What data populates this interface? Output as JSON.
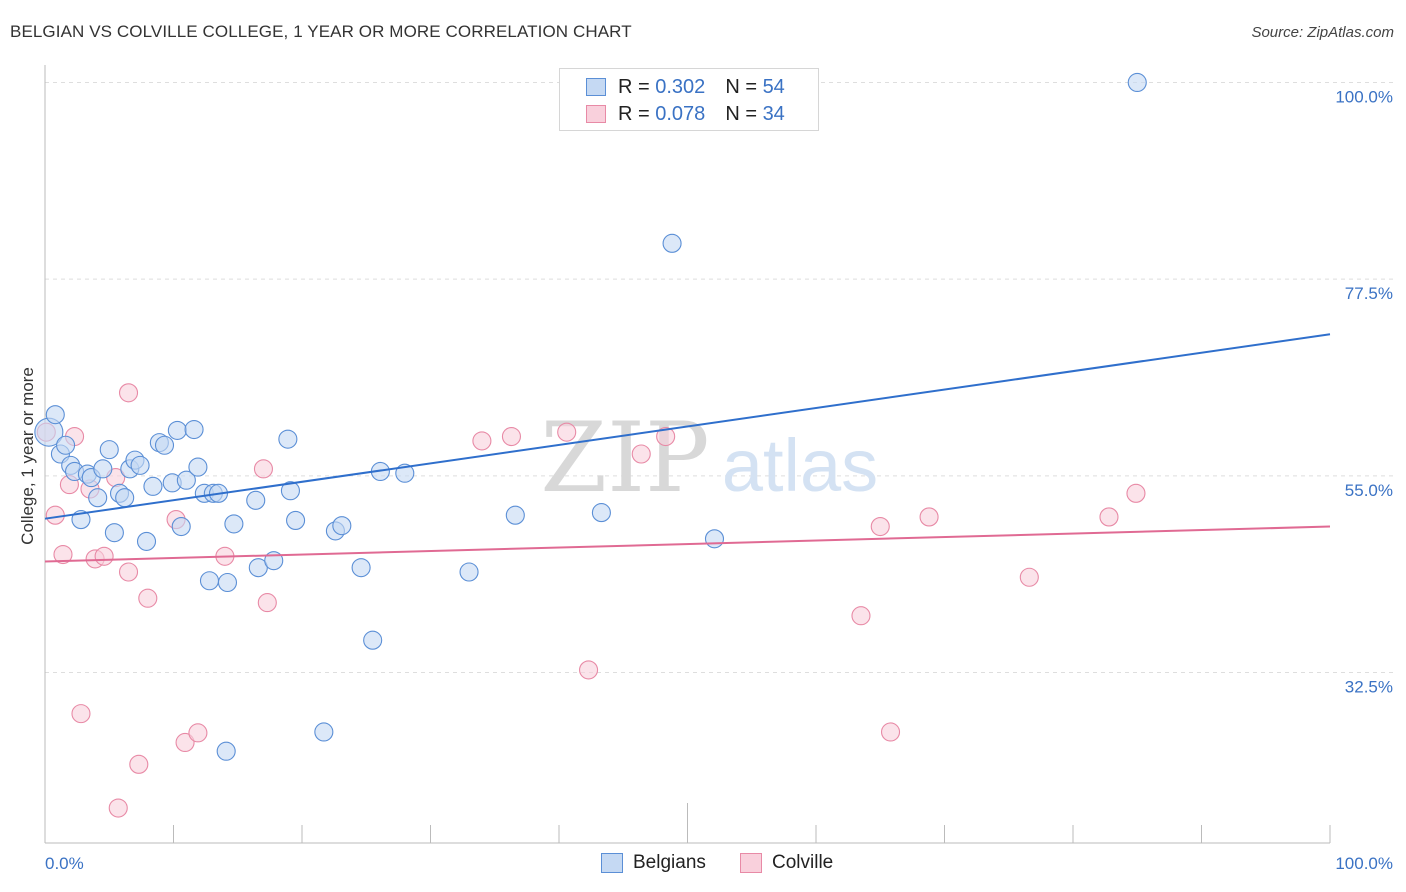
{
  "header": {
    "title": "BELGIAN VS COLVILLE COLLEGE, 1 YEAR OR MORE CORRELATION CHART",
    "source": "Source: ZipAtlas.com"
  },
  "legend": {
    "belgians": {
      "r_label": "R = ",
      "r_value": "0.302",
      "n_label": "N = ",
      "n_value": "54"
    },
    "colville": {
      "r_label": "R = ",
      "r_value": "0.078",
      "n_label": "N = ",
      "n_value": "34"
    }
  },
  "watermark": {
    "zip": "ZIP",
    "atlas": "atlas"
  },
  "chart_data": {
    "type": "scatter",
    "title": "BELGIAN VS COLVILLE COLLEGE, 1 YEAR OR MORE CORRELATION CHART",
    "xlabel": "",
    "ylabel": "College, 1 year or more",
    "xlim": [
      0,
      100
    ],
    "ylim": [
      13,
      102
    ],
    "x_tick_labels": [
      "0.0%",
      "100.0%"
    ],
    "y_ticks": [
      {
        "value": 32.5,
        "label": "32.5%"
      },
      {
        "value": 55.0,
        "label": "55.0%"
      },
      {
        "value": 77.5,
        "label": "77.5%"
      },
      {
        "value": 100.0,
        "label": "100.0%"
      }
    ],
    "colors": {
      "belgians": "#5b8fd6",
      "belgians_fill": "#c5d9f3",
      "belgians_line": "#2f6fcc",
      "colville": "#e88aa6",
      "colville_fill": "#f9d0dc",
      "colville_line": "#e06a93"
    },
    "series": [
      {
        "name": "Belgians",
        "trend": {
          "x": [
            0,
            100
          ],
          "y": [
            50.1,
            71.2
          ]
        },
        "points": [
          [
            0.3,
            60.0
          ],
          [
            0.8,
            62.0
          ],
          [
            1.2,
            57.5
          ],
          [
            1.6,
            58.5
          ],
          [
            2.0,
            56.2
          ],
          [
            2.3,
            55.5
          ],
          [
            2.8,
            50.0
          ],
          [
            3.3,
            55.2
          ],
          [
            3.6,
            54.8
          ],
          [
            4.1,
            52.5
          ],
          [
            4.5,
            55.8
          ],
          [
            5.0,
            58.0
          ],
          [
            5.4,
            48.5
          ],
          [
            5.8,
            53.0
          ],
          [
            6.2,
            52.5
          ],
          [
            6.6,
            55.8
          ],
          [
            7.0,
            56.8
          ],
          [
            7.4,
            56.2
          ],
          [
            7.9,
            47.5
          ],
          [
            8.4,
            53.8
          ],
          [
            8.9,
            58.8
          ],
          [
            9.3,
            58.5
          ],
          [
            9.9,
            54.2
          ],
          [
            10.3,
            60.2
          ],
          [
            10.6,
            49.2
          ],
          [
            11.0,
            54.5
          ],
          [
            11.6,
            60.3
          ],
          [
            11.9,
            56.0
          ],
          [
            12.4,
            53.0
          ],
          [
            12.8,
            43.0
          ],
          [
            13.1,
            53.0
          ],
          [
            13.5,
            53.0
          ],
          [
            14.2,
            42.8
          ],
          [
            14.7,
            49.5
          ],
          [
            16.4,
            52.2
          ],
          [
            16.6,
            44.5
          ],
          [
            17.8,
            45.3
          ],
          [
            18.9,
            59.2
          ],
          [
            19.1,
            53.3
          ],
          [
            19.5,
            49.9
          ],
          [
            21.7,
            25.7
          ],
          [
            22.6,
            48.7
          ],
          [
            23.1,
            49.3
          ],
          [
            24.6,
            44.5
          ],
          [
            25.5,
            36.2
          ],
          [
            26.1,
            55.5
          ],
          [
            28.0,
            55.3
          ],
          [
            33.0,
            44.0
          ],
          [
            36.6,
            50.5
          ],
          [
            43.3,
            50.8
          ],
          [
            48.8,
            81.6
          ],
          [
            52.1,
            47.8
          ],
          [
            85.0,
            100.0
          ],
          [
            14.1,
            23.5
          ]
        ]
      },
      {
        "name": "Colville",
        "trend": {
          "x": [
            0,
            100
          ],
          "y": [
            45.2,
            49.2
          ]
        },
        "points": [
          [
            0.1,
            60.0
          ],
          [
            0.8,
            50.5
          ],
          [
            1.4,
            46.0
          ],
          [
            1.9,
            54.0
          ],
          [
            2.3,
            59.5
          ],
          [
            2.8,
            27.8
          ],
          [
            3.5,
            53.5
          ],
          [
            3.9,
            45.5
          ],
          [
            4.6,
            45.8
          ],
          [
            5.5,
            54.8
          ],
          [
            5.7,
            17.0
          ],
          [
            6.5,
            44.0
          ],
          [
            6.5,
            64.5
          ],
          [
            7.3,
            22.0
          ],
          [
            8.0,
            41.0
          ],
          [
            10.2,
            50.0
          ],
          [
            10.9,
            24.5
          ],
          [
            11.9,
            25.6
          ],
          [
            14.0,
            45.8
          ],
          [
            17.0,
            55.8
          ],
          [
            17.3,
            40.5
          ],
          [
            34.0,
            59.0
          ],
          [
            36.3,
            59.5
          ],
          [
            40.6,
            60.0
          ],
          [
            42.3,
            32.8
          ],
          [
            46.4,
            57.5
          ],
          [
            48.3,
            59.5
          ],
          [
            63.5,
            39.0
          ],
          [
            65.0,
            49.2
          ],
          [
            65.8,
            25.7
          ],
          [
            68.8,
            50.3
          ],
          [
            76.6,
            43.4
          ],
          [
            82.8,
            50.3
          ],
          [
            84.9,
            53.0
          ]
        ]
      }
    ]
  },
  "bottom_legend": {
    "belgians": "Belgians",
    "colville": "Colville"
  }
}
